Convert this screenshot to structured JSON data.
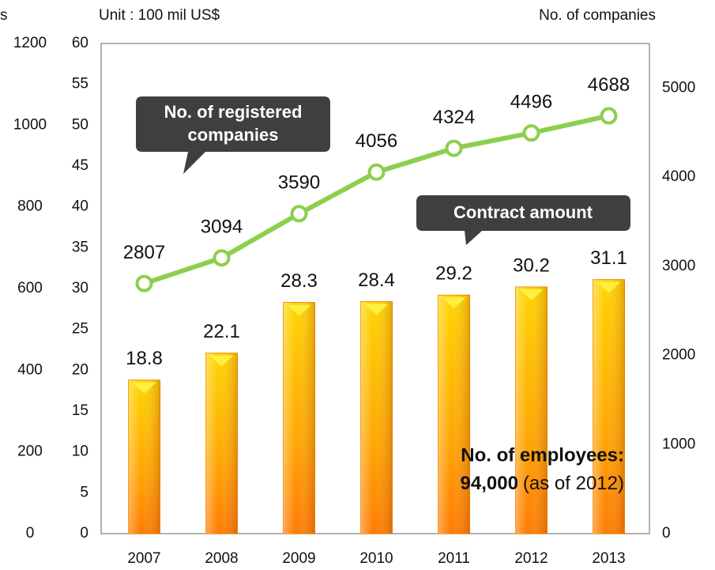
{
  "chart_data": {
    "type": "bar_line",
    "unit_label": "Unit : 100 mil US$",
    "y2_label": "No. of companies",
    "cut_label": "s",
    "categories": [
      "2007",
      "2008",
      "2009",
      "2010",
      "2011",
      "2012",
      "2013"
    ],
    "series": [
      {
        "name": "Contract amount",
        "color": "#ffa000",
        "values": [
          18.8,
          22.1,
          28.3,
          28.4,
          29.2,
          30.2,
          31.1
        ]
      },
      {
        "name": "No. of registered companies",
        "color": "#8ccf4d",
        "axis": "y2",
        "values": [
          2807,
          3094,
          3590,
          4056,
          4324,
          4496,
          4688
        ]
      }
    ],
    "callout_companies": [
      "No. of  registered",
      "companies"
    ],
    "callout_contract": "Contract  amount",
    "employees_label": "No. of employees:",
    "employees_value": "94,000",
    "employees_note": "(as of 2012)",
    "ylim": [
      0,
      60
    ],
    "yticks": [
      0,
      5,
      10,
      15,
      20,
      25,
      30,
      35,
      40,
      45,
      50,
      55,
      60
    ],
    "y2lim": [
      0,
      5500
    ],
    "y2ticks": [
      0,
      1000,
      2000,
      3000,
      4000,
      5000
    ],
    "y3lim": [
      0,
      1200
    ],
    "y3ticks": [
      0,
      200,
      400,
      600,
      800,
      1000,
      1200
    ]
  }
}
